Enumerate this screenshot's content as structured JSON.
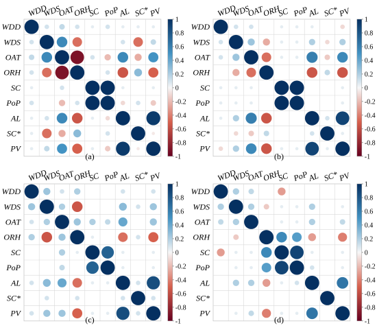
{
  "figure": {
    "variables": [
      "WDD",
      "WDS",
      "OAT",
      "ORH",
      "SC",
      "PoP",
      "AL",
      "SC*",
      "PV"
    ],
    "colorbar_ticks": [
      "1",
      "0.8",
      "0.6",
      "0.4",
      "0.2",
      "0",
      "-0.2",
      "-0.4",
      "-0.6",
      "-0.8",
      "-1"
    ],
    "colorscale": {
      "negative_end": "#67001f",
      "negative_mid": "#d6604d",
      "neutral": "#f7f7f7",
      "positive_mid": "#4393c3",
      "positive_end": "#053061"
    }
  },
  "chart_data": [
    {
      "type": "heatmap",
      "panel_label": "(a)",
      "variables": [
        "WDD",
        "WDS",
        "OAT",
        "ORH",
        "SC",
        "PoP",
        "AL",
        "SC*",
        "PV"
      ],
      "value_range": [
        -1,
        1
      ],
      "matrix": [
        [
          1.0,
          0.1,
          0.15,
          0.1,
          0.05,
          0.1,
          0.05,
          0.05,
          0.05
        ],
        [
          0.1,
          1.0,
          0.55,
          -0.45,
          0.0,
          0.0,
          0.1,
          -0.45,
          0.15
        ],
        [
          0.15,
          0.55,
          1.0,
          -0.9,
          0.1,
          -0.2,
          0.55,
          -0.25,
          0.5
        ],
        [
          0.1,
          -0.45,
          -0.9,
          1.0,
          0.0,
          0.1,
          -0.55,
          0.3,
          -0.5
        ],
        [
          0.05,
          0.0,
          0.1,
          0.0,
          1.0,
          1.0,
          0.05,
          0.0,
          0.05
        ],
        [
          0.1,
          0.0,
          -0.2,
          0.1,
          1.0,
          1.0,
          -0.1,
          0.1,
          -0.15
        ],
        [
          0.05,
          0.1,
          0.55,
          -0.55,
          0.05,
          -0.1,
          1.0,
          0.0,
          0.95
        ],
        [
          0.05,
          -0.45,
          -0.25,
          0.3,
          0.0,
          0.1,
          0.0,
          1.0,
          -0.05
        ],
        [
          0.05,
          0.15,
          0.5,
          -0.5,
          0.05,
          -0.15,
          0.95,
          -0.05,
          1.0
        ]
      ]
    },
    {
      "type": "heatmap",
      "panel_label": "(b)",
      "variables": [
        "WDD",
        "WDS",
        "OAT",
        "ORH",
        "SC",
        "PoP",
        "AL",
        "SC*",
        "PV"
      ],
      "value_range": [
        -1,
        1
      ],
      "matrix": [
        [
          1.0,
          0.1,
          0.1,
          0.0,
          0.05,
          0.05,
          0.05,
          0.0,
          -0.1
        ],
        [
          0.1,
          1.0,
          0.25,
          -0.25,
          0.05,
          0.05,
          0.2,
          -0.1,
          0.2
        ],
        [
          0.1,
          0.25,
          1.0,
          -0.45,
          0.05,
          0.05,
          0.6,
          -0.15,
          0.55
        ],
        [
          0.0,
          -0.25,
          -0.45,
          1.0,
          0.0,
          0.0,
          -0.55,
          0.15,
          -0.55
        ],
        [
          0.05,
          0.05,
          0.05,
          0.0,
          1.0,
          1.0,
          0.0,
          0.0,
          0.05
        ],
        [
          0.05,
          0.05,
          0.05,
          0.0,
          1.0,
          1.0,
          0.0,
          0.0,
          0.05
        ],
        [
          0.05,
          0.2,
          0.6,
          -0.55,
          0.0,
          0.0,
          1.0,
          0.1,
          0.9
        ],
        [
          0.0,
          -0.1,
          -0.15,
          0.15,
          0.0,
          0.0,
          0.1,
          1.0,
          0.05
        ],
        [
          -0.1,
          0.2,
          0.55,
          -0.55,
          0.05,
          0.05,
          0.9,
          0.05,
          1.0
        ]
      ]
    },
    {
      "type": "heatmap",
      "panel_label": "(c)",
      "variables": [
        "WDD",
        "WDS",
        "OAT",
        "ORH",
        "SC",
        "PoP",
        "AL",
        "SC*",
        "PV"
      ],
      "value_range": [
        -1,
        1
      ],
      "matrix": [
        [
          1.0,
          0.25,
          0.1,
          0.2,
          0.0,
          0.0,
          0.1,
          0.0,
          0.1
        ],
        [
          0.25,
          1.0,
          0.2,
          -0.55,
          0.0,
          0.0,
          0.3,
          0.1,
          0.25
        ],
        [
          0.1,
          0.2,
          1.0,
          0.25,
          0.2,
          0.15,
          0.4,
          0.0,
          0.25
        ],
        [
          0.2,
          -0.55,
          0.25,
          1.0,
          0.05,
          0.0,
          -0.45,
          0.1,
          -0.5
        ],
        [
          0.0,
          0.0,
          0.2,
          0.05,
          1.0,
          0.75,
          0.05,
          0.0,
          0.05
        ],
        [
          0.0,
          0.0,
          0.15,
          0.0,
          0.75,
          1.0,
          0.05,
          0.0,
          0.05
        ],
        [
          0.1,
          0.3,
          0.4,
          -0.45,
          0.05,
          0.05,
          1.0,
          0.1,
          0.85
        ],
        [
          0.0,
          0.1,
          0.0,
          0.1,
          0.0,
          0.0,
          0.1,
          1.0,
          0.1
        ],
        [
          0.1,
          0.25,
          0.25,
          -0.5,
          0.05,
          0.05,
          0.85,
          0.1,
          1.0
        ]
      ]
    },
    {
      "type": "heatmap",
      "panel_label": "(d)",
      "variables": [
        "WDD",
        "WDS",
        "OAT",
        "ORH",
        "SC",
        "PoP",
        "AL",
        "SC*",
        "PV"
      ],
      "value_range": [
        -1,
        1
      ],
      "matrix": [
        [
          1.0,
          0.2,
          0.15,
          0.0,
          -0.3,
          0.0,
          0.0,
          0.0,
          0.0
        ],
        [
          0.2,
          1.0,
          0.2,
          -0.15,
          0.05,
          0.05,
          0.2,
          0.0,
          0.05
        ],
        [
          0.15,
          0.2,
          1.0,
          0.0,
          0.05,
          0.05,
          0.2,
          0.0,
          0.15
        ],
        [
          0.0,
          -0.15,
          0.0,
          1.0,
          0.55,
          0.45,
          -0.3,
          0.0,
          -0.4
        ],
        [
          -0.3,
          0.05,
          0.05,
          0.55,
          1.0,
          0.9,
          0.05,
          0.0,
          0.05
        ],
        [
          0.0,
          0.05,
          0.05,
          0.45,
          0.9,
          1.0,
          0.1,
          0.0,
          0.05
        ],
        [
          0.0,
          0.2,
          0.2,
          -0.3,
          0.05,
          0.1,
          1.0,
          0.0,
          0.65
        ],
        [
          0.0,
          0.0,
          0.0,
          0.0,
          0.0,
          0.0,
          0.0,
          1.0,
          0.0
        ],
        [
          0.0,
          0.05,
          0.15,
          -0.4,
          0.05,
          0.05,
          0.65,
          0.0,
          1.0
        ]
      ]
    }
  ]
}
